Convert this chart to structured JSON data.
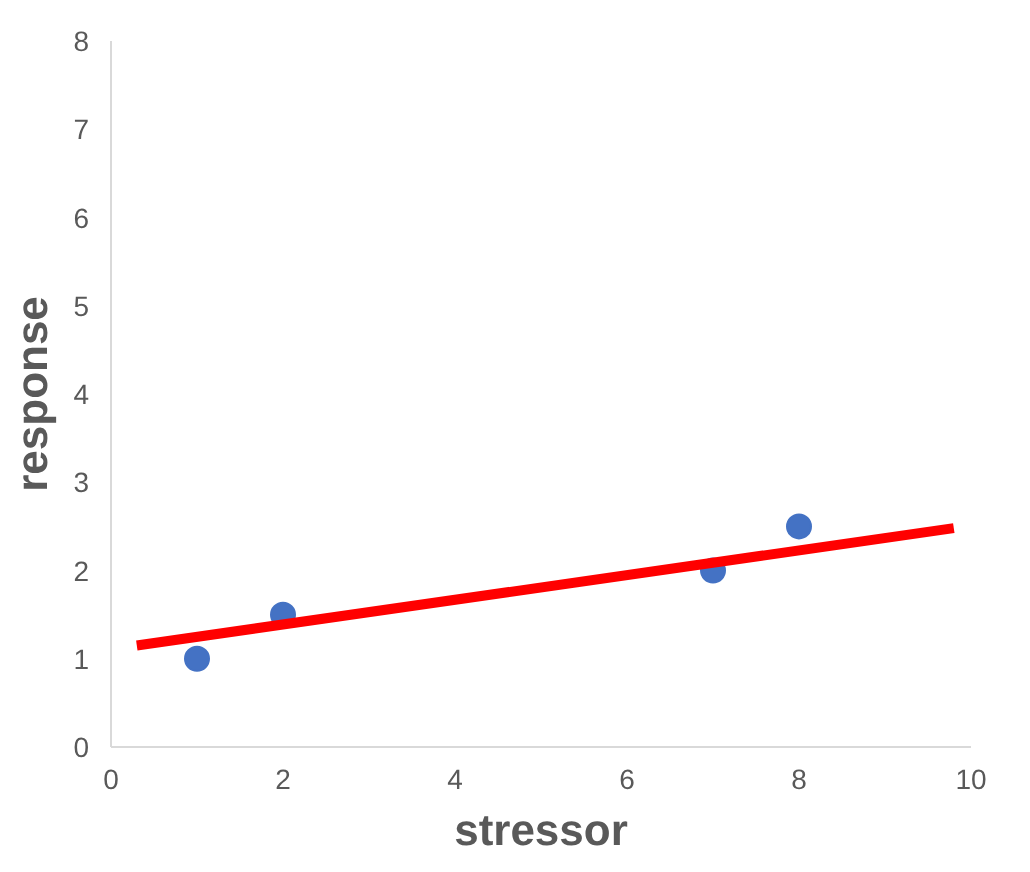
{
  "chart_data": {
    "type": "scatter",
    "xlabel": "stressor",
    "ylabel": "response",
    "grid": false,
    "xlim": [
      0,
      10
    ],
    "ylim": [
      0,
      8
    ],
    "xticks": [
      0,
      2,
      4,
      6,
      8,
      10
    ],
    "yticks": [
      0,
      1,
      2,
      3,
      4,
      5,
      6,
      7,
      8
    ],
    "series": [
      {
        "marker": "circle",
        "color": "#4472c4",
        "x": [
          1,
          2,
          7,
          8
        ],
        "values": [
          1,
          1.5,
          2,
          2.5
        ]
      },
      {
        "type": "line",
        "color": "#ff0000",
        "x": [
          0.3,
          9.8
        ],
        "values": [
          1.15,
          2.48
        ]
      }
    ]
  }
}
